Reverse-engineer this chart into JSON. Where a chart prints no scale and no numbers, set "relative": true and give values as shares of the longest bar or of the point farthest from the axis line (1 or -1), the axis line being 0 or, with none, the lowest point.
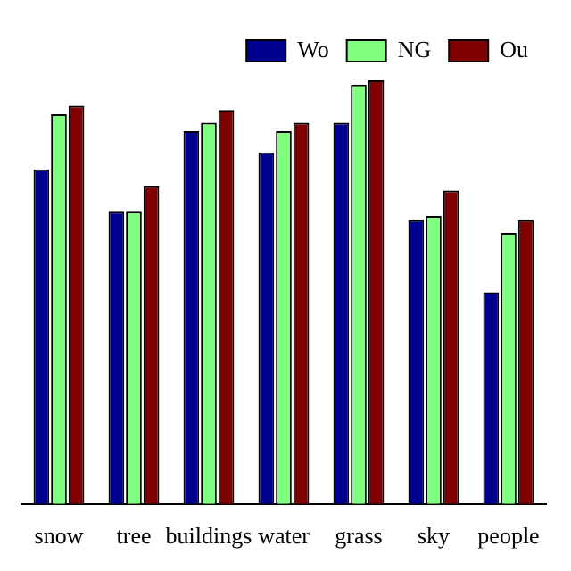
{
  "chart_data": {
    "type": "bar",
    "relative": true,
    "categories": [
      "snow",
      "tree",
      "buildings",
      "water",
      "grass",
      "sky",
      "people"
    ],
    "series": [
      {
        "name": "Wo",
        "color": "#00008f",
        "values": [
          0.79,
          0.69,
          0.88,
          0.83,
          0.9,
          0.67,
          0.5
        ]
      },
      {
        "name": "NG",
        "color": "#80ff80",
        "values": [
          0.92,
          0.69,
          0.9,
          0.88,
          0.99,
          0.68,
          0.64
        ]
      },
      {
        "name": "Ou",
        "color": "#800000",
        "values": [
          0.94,
          0.75,
          0.93,
          0.9,
          1,
          0.74,
          0.67
        ]
      }
    ],
    "legend": "top right",
    "grid": false
  }
}
